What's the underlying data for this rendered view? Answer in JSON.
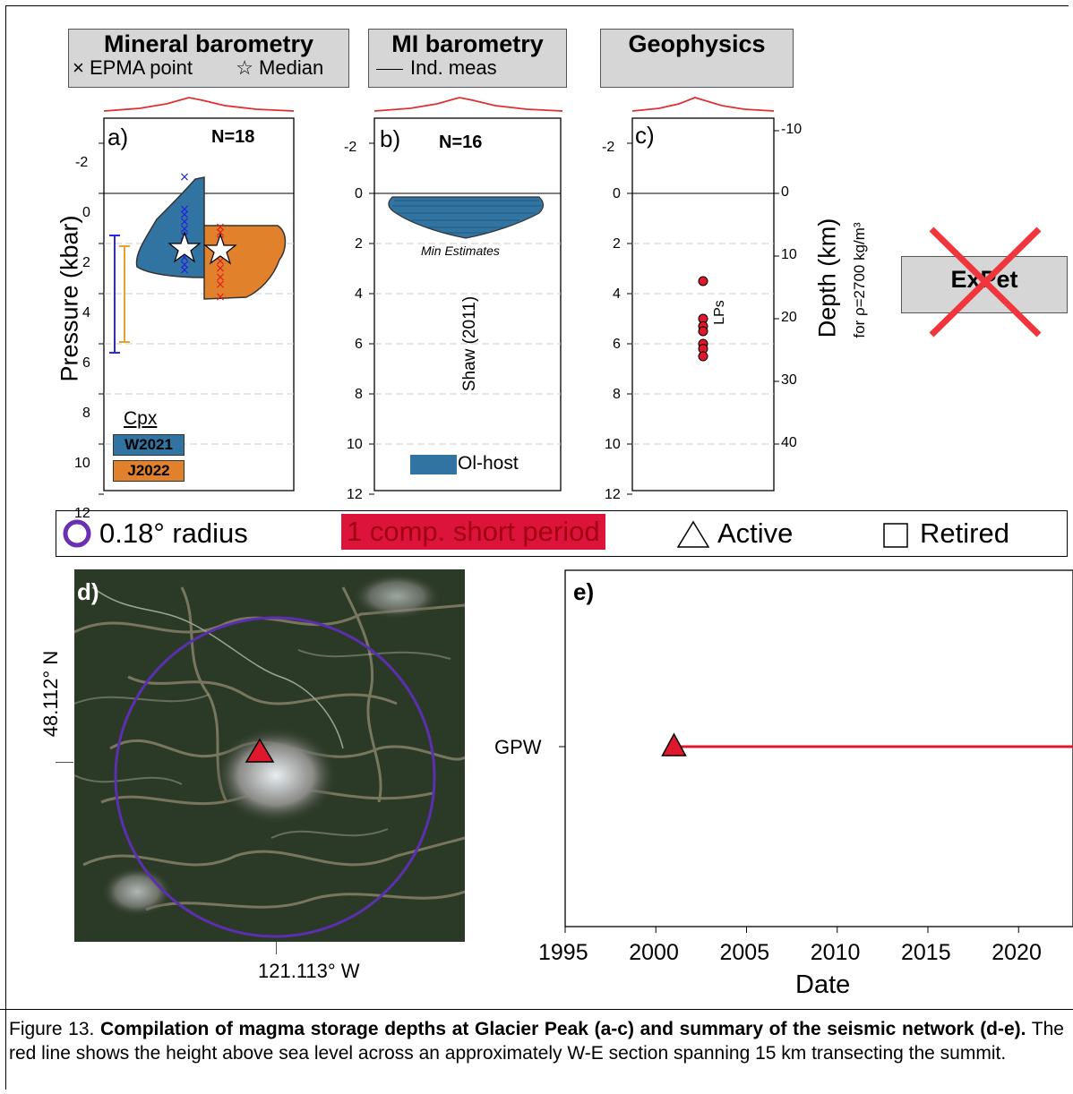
{
  "headers": {
    "mineral": {
      "title": "Mineral barometry",
      "legend_x": "EPMA point",
      "legend_star": "Median"
    },
    "mi": {
      "title": "MI barometry",
      "legend_line": "Ind. meas"
    },
    "geophysics": {
      "title": "Geophysics"
    },
    "expet": {
      "title": "ExPet"
    }
  },
  "panel_a": {
    "letter": "a)",
    "n": "N=18",
    "ylabel": "Pressure (kbar)",
    "yticks": [
      "-2",
      "0",
      "2",
      "4",
      "6",
      "8",
      "10",
      "12"
    ],
    "cpx_label": "Cpx",
    "w_label": "W2021",
    "j_label": "J2022",
    "colors": {
      "w": "#3274a1",
      "j": "#e1812c",
      "w_points": "#1f1fe0",
      "j_points": "#e01f1f"
    }
  },
  "panel_b": {
    "letter": "b)",
    "n": "N=16",
    "yticks": [
      "-2",
      "0",
      "2",
      "4",
      "6",
      "8",
      "10",
      "12"
    ],
    "min_label": "Min Estimates",
    "ref_label": "Shaw (2011)",
    "ol_label": "Ol-host"
  },
  "panel_c": {
    "letter": "c)",
    "yticks": [
      "-2",
      "0",
      "2",
      "4",
      "6",
      "8",
      "10",
      "12"
    ],
    "depth_ticks": [
      "-10",
      "0",
      "10",
      "20",
      "30",
      "40"
    ],
    "depth_label": "Depth (km)",
    "depth_sub": "for ρ=2700 kg/m³",
    "lps_label": "LPs",
    "lp_pressures": [
      3.5,
      5.0,
      5.3,
      5.5,
      6.0,
      6.2,
      6.5
    ]
  },
  "legend_bar": {
    "radius": "0.18° radius",
    "short_period": "1 comp. short period",
    "active": "Active",
    "retired": "Retired"
  },
  "panel_d": {
    "letter": "d)",
    "lat": "48.112° N",
    "lon": "121.113° W"
  },
  "panel_e": {
    "letter": "e)",
    "station": "GPW",
    "xlabel": "Date",
    "xticks": [
      "1995",
      "2000",
      "2005",
      "2010",
      "2015",
      "2020"
    ]
  },
  "chart_data": [
    {
      "type": "area",
      "panel": "a",
      "ylabel": "Pressure (kbar)",
      "ylim": [
        12,
        -2.5
      ],
      "series": [
        {
          "name": "W2021",
          "median": 2.2,
          "error_bar": [
            1.7,
            6.3
          ]
        },
        {
          "name": "J2022",
          "median": 2.2,
          "error_bar": [
            2.1,
            5.9
          ]
        }
      ]
    },
    {
      "type": "area",
      "panel": "b",
      "ylim": [
        12,
        -2.5
      ],
      "series": [
        {
          "name": "Ol-host",
          "range": [
            0.2,
            1.8
          ]
        }
      ]
    },
    {
      "type": "scatter",
      "panel": "c",
      "ylim": [
        12,
        -2.5
      ],
      "series": [
        {
          "name": "LPs",
          "values": [
            3.5,
            5.0,
            5.3,
            5.5,
            6.0,
            6.2,
            6.5
          ]
        }
      ]
    },
    {
      "type": "line",
      "panel": "e",
      "xlabel": "Date",
      "xlim": [
        1995,
        2023
      ],
      "series": [
        {
          "name": "GPW",
          "start": 2001,
          "end": 2023
        }
      ]
    }
  ],
  "caption": {
    "prefix": "Figure 13. ",
    "bold": "Compilation of magma storage depths at Glacier Peak (a-c) and summary of the seismic network (d-e).",
    "rest": "  The red line shows the height above sea level across an approximately W-E section spanning 15 km transecting the summit."
  }
}
